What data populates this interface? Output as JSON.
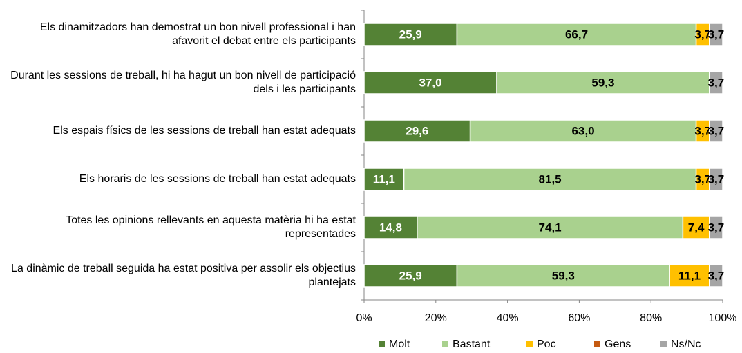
{
  "chart_data": {
    "type": "stacked-bar-horizontal",
    "categories": [
      "Els dinamitzadors han demostrat un bon nivell professional i han afavorit el debat entre els participants",
      "Durant les sessions de treball, hi ha hagut un bon nivell de participació dels i les participants",
      "Els espais físics de les sessions de treball han estat adequats",
      "Els horaris de les sessions de treball han estat adequats",
      "Totes les opinions rellevants en aquesta matèria hi ha estat representades",
      "La dinàmic de treball seguida ha estat positiva per assolir els objectius plantejats"
    ],
    "series": [
      {
        "name": "Molt",
        "color": "#548235",
        "values": [
          25.9,
          37.0,
          29.6,
          11.1,
          14.8,
          25.9
        ],
        "value_labels": [
          "25,9",
          "37,0",
          "29,6",
          "11,1",
          "14,8",
          "25,9"
        ]
      },
      {
        "name": "Bastant",
        "color": "#a9d18e",
        "values": [
          66.7,
          59.3,
          63.0,
          81.5,
          74.1,
          59.3
        ],
        "value_labels": [
          "66,7",
          "59,3",
          "63,0",
          "81,5",
          "74,1",
          "59,3"
        ]
      },
      {
        "name": "Poc",
        "color": "#ffc000",
        "values": [
          3.7,
          null,
          3.7,
          3.7,
          7.4,
          11.1
        ],
        "value_labels": [
          "3,7",
          null,
          "3,7",
          "3,7",
          "7,4",
          "11,1"
        ]
      },
      {
        "name": "Gens",
        "color": "#c55a11",
        "values": [
          null,
          null,
          null,
          null,
          null,
          null
        ]
      },
      {
        "name": "Ns/Nc",
        "color": "#a5a5a5",
        "values": [
          3.7,
          3.7,
          3.7,
          3.7,
          3.7,
          3.7
        ],
        "value_labels": [
          "3,7",
          "3,7",
          "3,7",
          "3,7",
          "3,7",
          "3,7"
        ]
      }
    ],
    "xlim": [
      0,
      100
    ],
    "xticks": [
      {
        "value": 0,
        "label": "0%"
      },
      {
        "value": 20,
        "label": "20%"
      },
      {
        "value": 40,
        "label": "40%"
      },
      {
        "value": 60,
        "label": "60%"
      },
      {
        "value": 80,
        "label": "80%"
      },
      {
        "value": 100,
        "label": "100%"
      }
    ],
    "legend": "bottom"
  }
}
